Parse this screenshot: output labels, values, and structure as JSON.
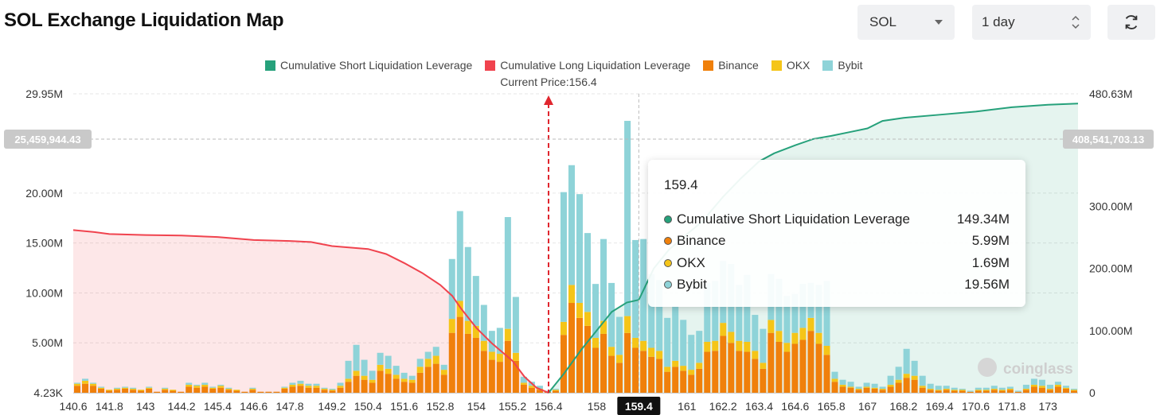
{
  "header": {
    "title": "SOL Exchange Liquidation Map",
    "symbol_select": "SOL",
    "range_select": "1 day",
    "refresh_icon": "refresh-icon"
  },
  "legend": [
    {
      "label": "Cumulative Short Liquidation Leverage",
      "color": "#26a17b"
    },
    {
      "label": "Cumulative Long Liquidation Leverage",
      "color": "#f0434e"
    },
    {
      "label": "Binance",
      "color": "#f0800b"
    },
    {
      "label": "OKX",
      "color": "#f5c518"
    },
    {
      "label": "Bybit",
      "color": "#8ed3d8"
    }
  ],
  "current_price_label": "Current Price:156.4",
  "crosshair": {
    "left_value": "25,459,944.43",
    "right_value": "408,541,703.13",
    "x_value": "159.4"
  },
  "tooltip": {
    "title": "159.4",
    "rows": [
      {
        "name": "Cumulative Short Liquidation Leverage",
        "value": "149.34M",
        "color": "#26a17b"
      },
      {
        "name": "Binance",
        "value": "5.99M",
        "color": "#f0800b"
      },
      {
        "name": "OKX",
        "value": "1.69M",
        "color": "#f5c518"
      },
      {
        "name": "Bybit",
        "value": "19.56M",
        "color": "#8ed3d8"
      }
    ]
  },
  "watermark": "coinglass",
  "chart_data": {
    "type": "bar",
    "title": "SOL Exchange Liquidation Map",
    "current_price": 156.4,
    "x_range": [
      140.6,
      174.0
    ],
    "x_tick_labels": [
      "140.6",
      "141.8",
      "143",
      "144.2",
      "145.4",
      "146.6",
      "147.8",
      "149.2",
      "150.4",
      "151.6",
      "152.8",
      "154",
      "155.2",
      "156.4",
      "158",
      "159.4",
      "161",
      "162.2",
      "163.4",
      "164.6",
      "165.8",
      "167",
      "168.2",
      "169.4",
      "170.6",
      "171.8",
      "173"
    ],
    "y_left_tick_labels": [
      "4.23K",
      "5.00M",
      "10.00M",
      "15.00M",
      "20.00M",
      "29.95M"
    ],
    "y_left_range": [
      0,
      29950000
    ],
    "y_right_tick_labels": [
      "0",
      "100.00M",
      "200.00M",
      "300.00M",
      "480.63M"
    ],
    "y_right_range": [
      0,
      480630000
    ],
    "cumulative_long": {
      "name": "Cumulative Long Liquidation Leverage",
      "points": [
        [
          140.6,
          16.3
        ],
        [
          141.3,
          16.1
        ],
        [
          141.8,
          15.9
        ],
        [
          143,
          15.8
        ],
        [
          144.2,
          15.75
        ],
        [
          145.4,
          15.6
        ],
        [
          146.6,
          15.3
        ],
        [
          147.8,
          15.2
        ],
        [
          148.5,
          15.1
        ],
        [
          149.2,
          14.7
        ],
        [
          150.4,
          14.4
        ],
        [
          151.0,
          13.9
        ],
        [
          151.6,
          13.0
        ],
        [
          152.2,
          12.0
        ],
        [
          152.8,
          10.8
        ],
        [
          153.2,
          9.7
        ],
        [
          153.5,
          8.4
        ],
        [
          154,
          6.5
        ],
        [
          154.5,
          5.0
        ],
        [
          155.2,
          3.2
        ],
        [
          155.6,
          1.6
        ],
        [
          156.0,
          0.5
        ],
        [
          156.4,
          0.0
        ]
      ]
    },
    "cumulative_short": {
      "name": "Cumulative Short Liquidation Leverage",
      "points": [
        [
          156.4,
          0
        ],
        [
          156.9,
          30
        ],
        [
          157.5,
          70
        ],
        [
          158,
          100
        ],
        [
          158.5,
          130
        ],
        [
          159.0,
          145
        ],
        [
          159.4,
          149.34
        ],
        [
          159.9,
          200
        ],
        [
          160.4,
          230
        ],
        [
          161,
          255
        ],
        [
          161.5,
          275
        ],
        [
          162.2,
          315
        ],
        [
          162.8,
          345
        ],
        [
          163.4,
          372
        ],
        [
          163.9,
          385
        ],
        [
          164.6,
          398
        ],
        [
          165.2,
          408
        ],
        [
          165.8,
          413
        ],
        [
          166.5,
          420
        ],
        [
          167,
          425
        ],
        [
          167.5,
          437
        ],
        [
          168.2,
          442
        ],
        [
          169.4,
          447
        ],
        [
          170.6,
          452
        ],
        [
          171.8,
          459
        ],
        [
          173,
          463
        ],
        [
          174,
          465
        ]
      ]
    },
    "series": [
      {
        "name": "Binance",
        "color": "#f0800b",
        "values": [
          0.7,
          0.9,
          0.7,
          0.4,
          0.2,
          0.3,
          0.4,
          0.3,
          0.2,
          0.4,
          0.1,
          0.3,
          0.2,
          0.1,
          0.6,
          0.5,
          0.6,
          0.4,
          0.5,
          0.3,
          0.2,
          0.1,
          0.3,
          0.1,
          0.1,
          0.1,
          0.4,
          0.6,
          0.7,
          0.5,
          0.5,
          0.3,
          0.2,
          0.5,
          1.1,
          1.7,
          1.3,
          1.0,
          2.2,
          1.9,
          1.4,
          1.1,
          1.0,
          2.0,
          2.6,
          2.9,
          1.8,
          6.0,
          7.6,
          5.9,
          5.5,
          4.2,
          3.3,
          3.1,
          5.2,
          3.2,
          0.8,
          0.5,
          0.3,
          0.1,
          0.2,
          5.8,
          9.0,
          7.5,
          6.7,
          4.5,
          5.9,
          3.7,
          3.0,
          5.99,
          4.5,
          4.2,
          3.6,
          3.4,
          2.1,
          2.6,
          2.2,
          1.8,
          2.4,
          4.1,
          4.2,
          5.7,
          5.0,
          4.2,
          4.1,
          3.4,
          2.4,
          6.0,
          5.1,
          4.1,
          4.9,
          5.3,
          6.2,
          4.9,
          3.8,
          1.1,
          0.6,
          0.5,
          0.3,
          0.5,
          0.4,
          0.3,
          0.6,
          1.0,
          1.5,
          1.3,
          0.5,
          0.3,
          0.2,
          0.3,
          0.2,
          0.2,
          0.1,
          0.2,
          0.2,
          0.3,
          0.2,
          0.3,
          0.1,
          0.3,
          0.6,
          0.5,
          0.3,
          0.6,
          0.4,
          0.2
        ]
      },
      {
        "name": "OKX",
        "color": "#f5c518",
        "values": [
          0.2,
          0.3,
          0.2,
          0.1,
          0.1,
          0.1,
          0.1,
          0.1,
          0.1,
          0.1,
          0.0,
          0.1,
          0.1,
          0.0,
          0.2,
          0.2,
          0.2,
          0.1,
          0.2,
          0.1,
          0.1,
          0.0,
          0.1,
          0.0,
          0.0,
          0.0,
          0.1,
          0.2,
          0.2,
          0.2,
          0.2,
          0.1,
          0.1,
          0.2,
          0.3,
          0.5,
          0.4,
          0.3,
          0.6,
          0.5,
          0.4,
          0.3,
          0.3,
          0.6,
          0.8,
          0.8,
          0.5,
          1.4,
          1.6,
          1.3,
          1.2,
          1.0,
          0.8,
          0.8,
          1.2,
          0.8,
          0.2,
          0.2,
          0.1,
          0.0,
          0.1,
          1.3,
          1.8,
          1.5,
          1.4,
          1.0,
          1.3,
          0.9,
          0.8,
          1.69,
          1.0,
          1.0,
          0.9,
          0.8,
          0.5,
          0.6,
          0.5,
          0.5,
          0.6,
          1.0,
          1.0,
          1.3,
          1.1,
          1.0,
          1.0,
          0.8,
          0.6,
          1.3,
          1.1,
          0.9,
          1.1,
          1.2,
          1.3,
          1.1,
          0.9,
          0.3,
          0.2,
          0.1,
          0.1,
          0.1,
          0.1,
          0.1,
          0.2,
          0.3,
          0.4,
          0.4,
          0.2,
          0.1,
          0.1,
          0.1,
          0.1,
          0.1,
          0.0,
          0.1,
          0.1,
          0.1,
          0.1,
          0.1,
          0.0,
          0.1,
          0.2,
          0.2,
          0.1,
          0.2,
          0.1,
          0.1
        ]
      },
      {
        "name": "Bybit",
        "color": "#8ed3d8",
        "values": [
          0.1,
          0.2,
          0.1,
          0.1,
          0.0,
          0.1,
          0.1,
          0.1,
          0.0,
          0.1,
          0.0,
          0.1,
          0.0,
          0.0,
          0.2,
          0.1,
          0.2,
          0.1,
          0.1,
          0.1,
          0.0,
          0.0,
          0.1,
          0.0,
          0.0,
          0.0,
          0.1,
          0.2,
          0.3,
          0.2,
          0.2,
          0.1,
          0.1,
          0.3,
          1.8,
          2.6,
          1.6,
          0.9,
          1.2,
          1.3,
          0.9,
          0.6,
          0.4,
          0.8,
          0.7,
          0.9,
          0.5,
          6.0,
          9.0,
          7.4,
          5.0,
          3.6,
          2.1,
          2.6,
          11.2,
          5.6,
          0.6,
          0.4,
          0.3,
          0.1,
          0.1,
          13.0,
          12.0,
          10.9,
          7.9,
          5.4,
          8.2,
          6.4,
          3.8,
          19.56,
          9.8,
          10.2,
          7.4,
          7.1,
          4.9,
          5.5,
          4.6,
          3.5,
          3.2,
          5.9,
          6.0,
          6.2,
          6.8,
          5.6,
          6.7,
          3.6,
          3.4,
          4.6,
          5.2,
          4.7,
          3.9,
          4.4,
          3.5,
          4.8,
          6.5,
          0.7,
          0.5,
          0.5,
          0.2,
          0.4,
          0.4,
          0.2,
          0.9,
          1.3,
          2.5,
          1.5,
          1.0,
          0.5,
          0.4,
          0.3,
          0.2,
          0.1,
          0.1,
          0.2,
          0.2,
          0.3,
          0.2,
          0.2,
          0.1,
          0.4,
          0.6,
          0.6,
          0.4,
          0.3,
          0.2,
          0.1
        ]
      }
    ],
    "legend_position": "top-center",
    "grid": true
  }
}
